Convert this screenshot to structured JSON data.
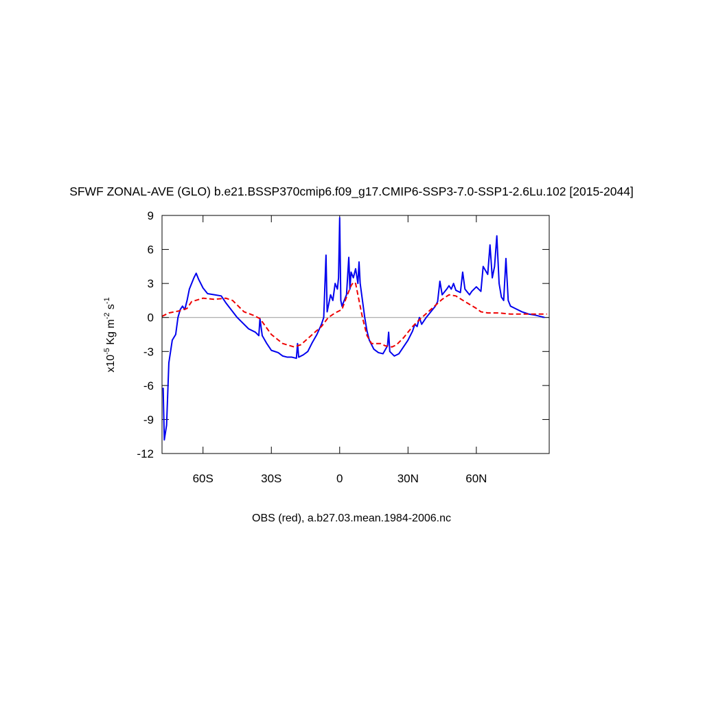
{
  "chart_data": {
    "type": "line",
    "title": "SFWF ZONAL-AVE (GLO) b.e21.BSSP370cmip6.f09_g17.CMIP6-SSP3-7.0-SSP1-2.6Lu.102 [2015-2044]",
    "ylabel_parts": [
      "x10",
      "-5",
      " Kg m",
      "-2",
      " s",
      "-1"
    ],
    "xlabel": "OBS (red), a.b27.03.mean.1984-2006.nc",
    "xlim": [
      -78,
      92
    ],
    "ylim": [
      -12,
      9
    ],
    "xticks": [
      {
        "value": -60,
        "label": "60S"
      },
      {
        "value": -30,
        "label": "30S"
      },
      0,
      {
        "value": 30,
        "label": "30N"
      },
      {
        "value": 60,
        "label": "60N"
      }
    ],
    "yticks": [
      -12,
      -9,
      -6,
      -3,
      0,
      3,
      6,
      9
    ],
    "reference_line": 0,
    "series": [
      {
        "color": "#0000ee",
        "dashed": false,
        "x": [
          -77.5,
          -77,
          -76,
          -75,
          -73.5,
          -72,
          -71,
          -70,
          -69,
          -68,
          -67,
          -66,
          -64,
          -63,
          -62,
          -60,
          -58,
          -55,
          -52,
          -50,
          -45,
          -40,
          -37,
          -35.5,
          -35,
          -34,
          -32,
          -30,
          -27,
          -25,
          -23,
          -21,
          -19,
          -18.5,
          -18,
          -16,
          -14,
          -12,
          -10,
          -8,
          -7,
          -6,
          -5.5,
          -4,
          -3,
          -2,
          -1,
          -0.5,
          0,
          0.5,
          1,
          2,
          3,
          4,
          4.5,
          5,
          6,
          7,
          8,
          8.5,
          9,
          10,
          11,
          12,
          13,
          15,
          17,
          19,
          21,
          21.5,
          22,
          24,
          26,
          28,
          30,
          32,
          33,
          34,
          35,
          36,
          38,
          40,
          42,
          43,
          44,
          45,
          47,
          48,
          49,
          50,
          51,
          53,
          54,
          55,
          57,
          58,
          60,
          62,
          63,
          65,
          66,
          67,
          68,
          69,
          70,
          71,
          72,
          73,
          74,
          75,
          77,
          80,
          83,
          86,
          88,
          90
        ],
        "values": [
          -6.2,
          -10.8,
          -9.5,
          -4,
          -2,
          -1.5,
          0,
          0.7,
          1,
          0.7,
          1.5,
          2.5,
          3.5,
          3.9,
          3.4,
          2.6,
          2.1,
          2.0,
          1.9,
          1.3,
          0,
          -1.0,
          -1.3,
          -1.6,
          -0.1,
          -1.6,
          -2.3,
          -2.9,
          -3.1,
          -3.4,
          -3.5,
          -3.5,
          -3.6,
          -2.3,
          -3.5,
          -3.3,
          -3.0,
          -2.2,
          -1.5,
          -0.6,
          0,
          5.5,
          0.5,
          2,
          1.5,
          3,
          2.5,
          3.5,
          8.8,
          1.5,
          1,
          1.5,
          2,
          5.3,
          2.5,
          4,
          3.5,
          4.3,
          3,
          4.9,
          3,
          1.5,
          0,
          -1.2,
          -2,
          -2.8,
          -3.1,
          -3.2,
          -2.5,
          -1.3,
          -3,
          -3.4,
          -3.2,
          -2.6,
          -2,
          -1.2,
          -0.6,
          -0.8,
          0,
          -0.6,
          0,
          0.5,
          1,
          1.4,
          3.2,
          2,
          2.5,
          2.8,
          2.5,
          3,
          2.4,
          2.2,
          4.0,
          2.5,
          2.0,
          2.3,
          2.7,
          2.3,
          4.5,
          3.8,
          6.4,
          3.5,
          4.5,
          7.2,
          3,
          1.8,
          1.5,
          5.2,
          1.5,
          1.0,
          0.8,
          0.5,
          0.3,
          0.2,
          0.1,
          0
        ]
      },
      {
        "color": "#ee0000",
        "dashed": true,
        "x": [
          -78,
          -75,
          -70,
          -67,
          -65,
          -60,
          -55,
          -50,
          -47,
          -42,
          -38,
          -35,
          -30,
          -25,
          -20,
          -17,
          -12,
          -8,
          -5,
          -2,
          1,
          3,
          5,
          6,
          7,
          8,
          9,
          10,
          12,
          14,
          18,
          20,
          23,
          25,
          28,
          32,
          35,
          40,
          45,
          48,
          51,
          55,
          60,
          62,
          65,
          70,
          75,
          80,
          85,
          91
        ],
        "values": [
          0.1,
          0.4,
          0.6,
          0.8,
          1.4,
          1.7,
          1.6,
          1.7,
          1.5,
          0.5,
          0.2,
          -0.1,
          -1.5,
          -2.3,
          -2.6,
          -2.4,
          -1.5,
          -0.8,
          0,
          0.4,
          0.7,
          1.8,
          2.8,
          3.1,
          3.0,
          2,
          1,
          0,
          -1.6,
          -2.3,
          -2.3,
          -2.5,
          -2.6,
          -2.4,
          -1.8,
          -0.8,
          -0.2,
          0.7,
          1.6,
          2.0,
          1.9,
          1.4,
          0.8,
          0.5,
          0.4,
          0.4,
          0.3,
          0.3,
          0.3,
          0.3
        ]
      }
    ]
  }
}
